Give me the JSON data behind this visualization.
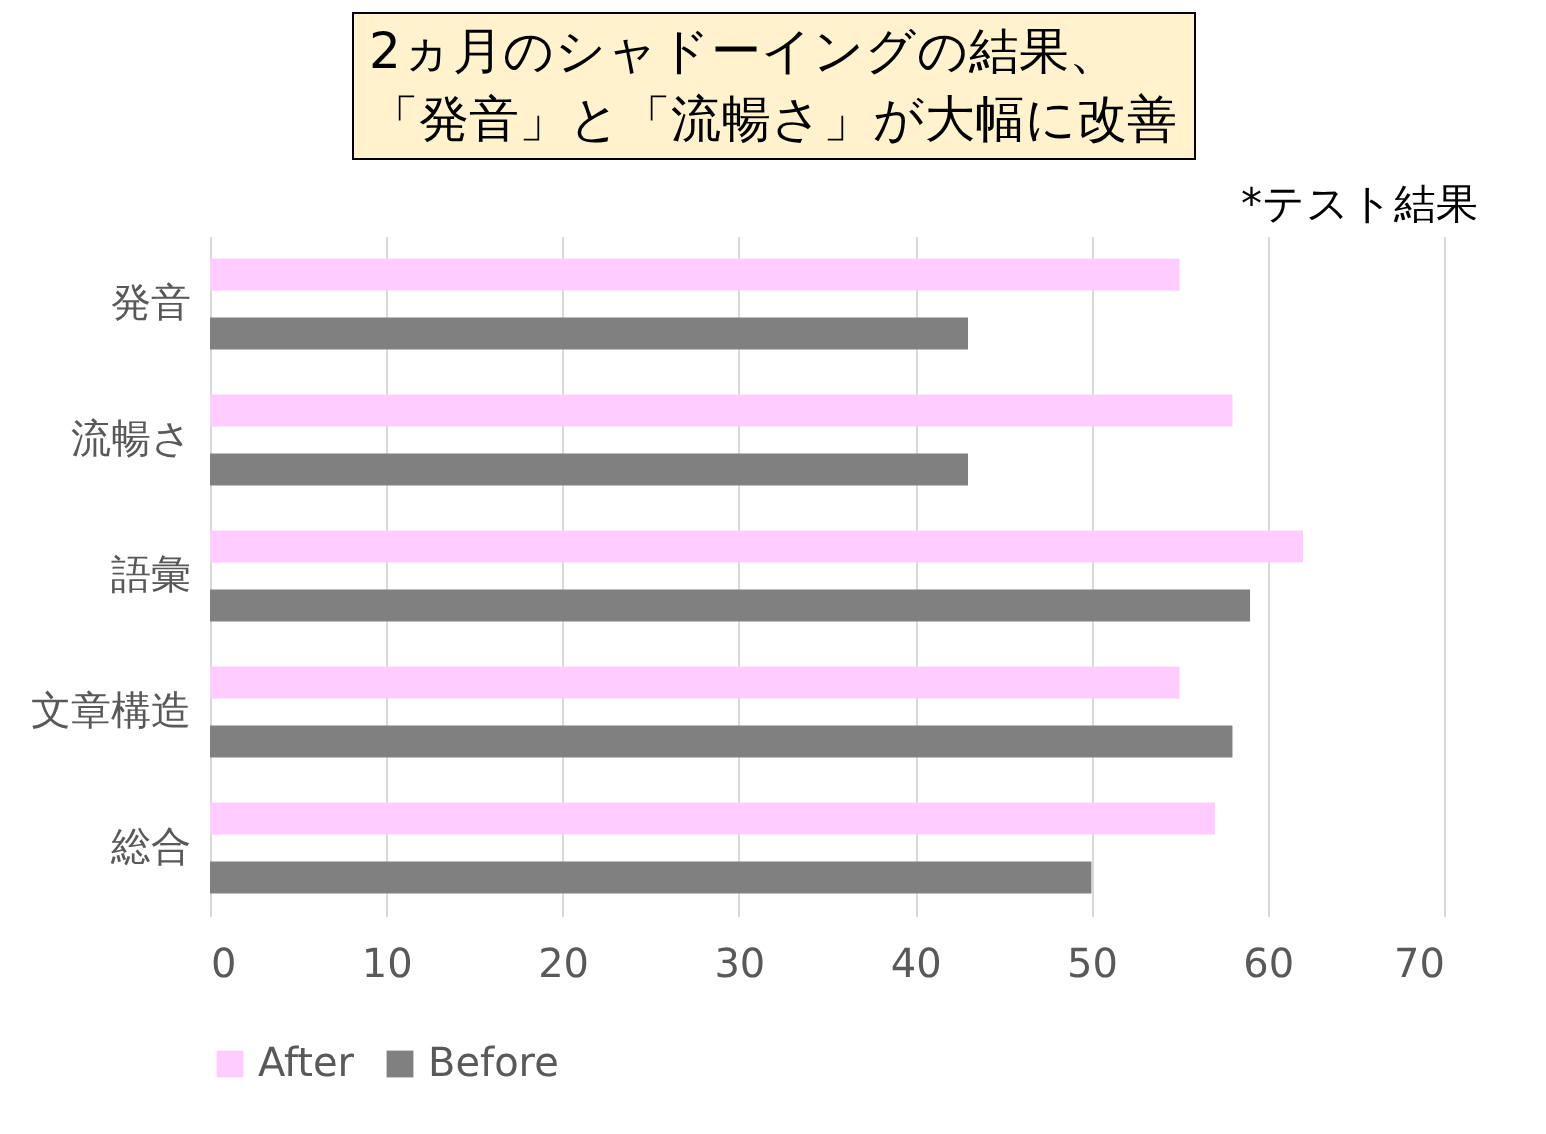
{
  "chart_data": {
    "type": "bar",
    "orientation": "horizontal",
    "title": "2ヵ月のシャドーイングの結果、",
    "subtitle": "「発音」と「流暢さ」が大幅に改善",
    "annotations": [
      "*テスト結果"
    ],
    "categories": [
      "発音",
      "流暢さ",
      "語彙",
      "文章構造",
      "総合"
    ],
    "series": [
      {
        "name": "After",
        "color": "#ffccff",
        "values": [
          55,
          58,
          62,
          55,
          57
        ]
      },
      {
        "name": "Before",
        "color": "#808080",
        "values": [
          43,
          43,
          59,
          58,
          50
        ]
      }
    ],
    "xlim": [
      0,
      70
    ],
    "xticks": [
      0,
      10,
      20,
      30,
      40,
      50,
      60,
      70
    ],
    "grid": "x",
    "legend": "bottom"
  }
}
